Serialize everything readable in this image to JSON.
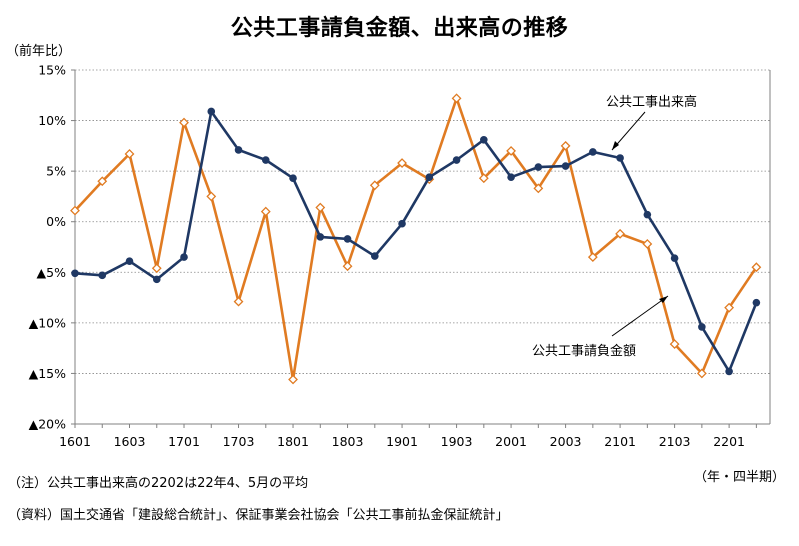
{
  "title": "公共工事請負金額、出来高の推移",
  "unit_label": "（前年比）",
  "period_label": "（年・四半期）",
  "notes": {
    "note1": "（注）公共工事出来高の2202は22年4、5月の平均",
    "note2": "（資料）国土交通省「建設総合統計」、保証事業会社協会「公共工事前払金保証統計」"
  },
  "colors": {
    "contracts": "#E07B22",
    "output": "#1F3864",
    "grid": "#888888",
    "axis": "#808080"
  },
  "chart_data": {
    "type": "line",
    "title": "公共工事請負金額、出来高の推移",
    "ylabel": "（前年比）",
    "xlabel": "（年・四半期）",
    "ylim": [
      -20,
      15
    ],
    "yticks": [
      15,
      10,
      5,
      0,
      -5,
      -10,
      -15,
      -20
    ],
    "ytick_labels": [
      "15%",
      "10%",
      "5%",
      "0%",
      "▲5%",
      "▲10%",
      "▲15%",
      "▲20%"
    ],
    "xtick_labels": [
      "1601",
      "1603",
      "1701",
      "1703",
      "1801",
      "1803",
      "1901",
      "1903",
      "2001",
      "2003",
      "2101",
      "2103",
      "2201"
    ],
    "grid": true,
    "categories": [
      "1601",
      "1602",
      "1603",
      "1604",
      "1701",
      "1702",
      "1703",
      "1704",
      "1801",
      "1802",
      "1803",
      "1804",
      "1901",
      "1902",
      "1903",
      "1904",
      "2001",
      "2002",
      "2003",
      "2004",
      "2101",
      "2102",
      "2103",
      "2104",
      "2201",
      "2202"
    ],
    "series": [
      {
        "name": "公共工事請負金額",
        "marker": "diamond-open",
        "values": [
          1.1,
          4.0,
          6.7,
          -4.6,
          9.8,
          2.5,
          -7.9,
          1.0,
          -15.6,
          1.4,
          -4.4,
          3.6,
          5.8,
          4.2,
          12.2,
          4.3,
          7.0,
          3.3,
          7.5,
          -3.5,
          -1.2,
          -2.2,
          -12.1,
          -15.0,
          -8.5,
          -4.5
        ]
      },
      {
        "name": "公共工事出来高",
        "marker": "circle-filled",
        "values": [
          -5.1,
          -5.3,
          -3.9,
          -5.7,
          -3.5,
          10.9,
          7.1,
          6.1,
          4.3,
          -1.5,
          -1.7,
          -3.4,
          -0.2,
          4.4,
          6.1,
          8.1,
          4.4,
          5.4,
          5.5,
          6.9,
          6.3,
          0.7,
          -3.6,
          -10.4,
          -14.8,
          -8.0
        ]
      }
    ]
  }
}
